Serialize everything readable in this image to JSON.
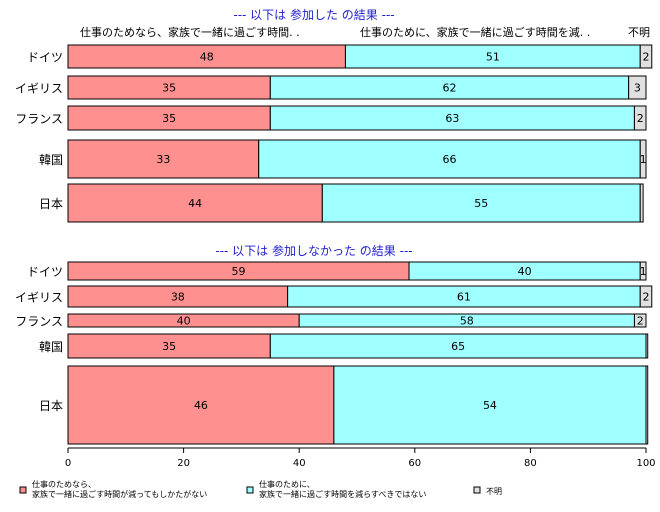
{
  "chart_data": {
    "type": "bar",
    "stacked": true,
    "orientation": "horizontal",
    "xlim": [
      0,
      100
    ],
    "xticks": [
      "0",
      "20",
      "40",
      "60",
      "80",
      "100"
    ],
    "colors": {
      "s1": "#ff9090",
      "s2": "#a0ffff",
      "s3": "#e0e0e0"
    },
    "legend": {
      "position": "bottom",
      "items": [
        {
          "lines": [
            "仕事のためなら、",
            "家族で一緒に過ごす時間が減ってもしかたがない"
          ]
        },
        {
          "lines": [
            "仕事のために、",
            "家族で一緒に過ごす時間を減らすべきではない"
          ]
        },
        {
          "lines": [
            "不明"
          ]
        }
      ]
    },
    "panels": [
      {
        "title": "--- 以下は 参加した の結果 ---",
        "headers": [
          "仕事のためなら、家族で一緒に過ごす時間. .",
          "仕事のために、家族で一緒に過ごす時間を減. .",
          "不明"
        ],
        "categories": [
          "ドイツ",
          "イギリス",
          "フランス",
          "韓国",
          "日本"
        ],
        "series": [
          {
            "values": [
              48,
              35,
              35,
              33,
              44
            ],
            "labels": [
              "48",
              "35",
              "35",
              "33",
              "44"
            ]
          },
          {
            "values": [
              51,
              62,
              63,
              66,
              55
            ],
            "labels": [
              "51",
              "62",
              "63",
              "66",
              "55"
            ]
          },
          {
            "values": [
              2,
              3,
              2,
              1,
              0.5
            ],
            "labels": [
              "2",
              "3",
              "2",
              "1",
              ""
            ]
          }
        ]
      },
      {
        "title": "--- 以下は 参加しなかった の結果 ---",
        "categories": [
          "ドイツ",
          "イギリス",
          "フランス",
          "韓国",
          "日本"
        ],
        "series": [
          {
            "values": [
              59,
              38,
              40,
              35,
              46
            ],
            "labels": [
              "59",
              "38",
              "40",
              "35",
              "46"
            ]
          },
          {
            "values": [
              40,
              61,
              58,
              65,
              54
            ],
            "labels": [
              "40",
              "61",
              "58",
              "65",
              "54"
            ]
          },
          {
            "values": [
              1,
              2,
              2,
              0.3,
              0.3
            ],
            "labels": [
              "1",
              "2",
              "2",
              "",
              ""
            ]
          }
        ]
      }
    ]
  }
}
